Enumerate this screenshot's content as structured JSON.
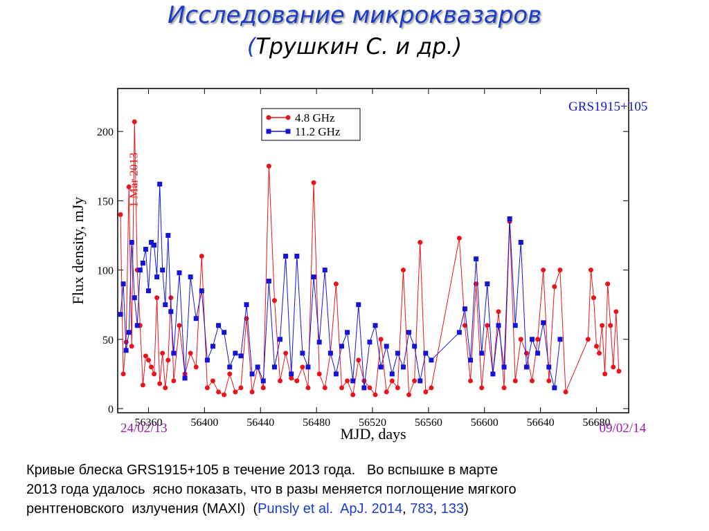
{
  "header": {
    "title": "Исследование микроквазаров",
    "subtitle": [
      {
        "text": "(",
        "color": "#1a3cc8"
      },
      {
        "text": "Трушкин С. и др.)",
        "color": "#000000"
      }
    ]
  },
  "chart_data": {
    "type": "line",
    "xlabel": "MJD, days",
    "ylabel": "Flux density, mJy",
    "annotations": [
      {
        "text": "GRS1915+105",
        "color": "#1414d8",
        "x": 56660,
        "y": 215
      },
      {
        "text": "1 Mar 2013",
        "color": "#e8141c",
        "x": 56352,
        "y": 165,
        "rotate": -90
      },
      {
        "text": "24/02/13",
        "color": "#9a1aa8",
        "x": 56340,
        "y": -17
      },
      {
        "text": "09/02/14",
        "color": "#9a1aa8",
        "x": 56682,
        "y": -17
      }
    ],
    "xlim": [
      56338,
      56703
    ],
    "ylim": [
      -3,
      231
    ],
    "xticks": [
      56360,
      56400,
      56440,
      56480,
      56520,
      56560,
      56600,
      56640,
      56680
    ],
    "yticks": [
      0,
      50,
      100,
      150,
      200
    ],
    "legend": "top-center",
    "series": [
      {
        "name": "4.8 GHz",
        "color": "#e8141c",
        "marker": "circle",
        "x": [
          56340,
          56342,
          56344,
          56346,
          56348,
          56350,
          56352,
          56354,
          56356,
          56358,
          56360,
          56362,
          56364,
          56366,
          56368,
          56370,
          56372,
          56374,
          56376,
          56378,
          56382,
          56386,
          56390,
          56394,
          56398,
          56402,
          56406,
          56410,
          56414,
          56418,
          56422,
          56426,
          56430,
          56434,
          56438,
          56442,
          56446,
          56450,
          56454,
          56458,
          56462,
          56466,
          56470,
          56474,
          56478,
          56482,
          56486,
          56490,
          56494,
          56498,
          56502,
          56506,
          56510,
          56514,
          56518,
          56522,
          56526,
          56530,
          56534,
          56538,
          56542,
          56546,
          56550,
          56554,
          56558,
          56562,
          56582,
          56586,
          56590,
          56594,
          56598,
          56602,
          56606,
          56610,
          56614,
          56618,
          56622,
          56626,
          56630,
          56634,
          56638,
          56642,
          56646,
          56650,
          56654,
          56658,
          56674,
          56676,
          56678,
          56680,
          56682,
          56684,
          56686,
          56688,
          56690,
          56692,
          56694,
          56696
        ],
        "values": [
          140,
          25,
          48,
          160,
          45,
          207,
          100,
          60,
          17,
          38,
          35,
          30,
          25,
          80,
          18,
          40,
          15,
          35,
          80,
          20,
          60,
          25,
          40,
          30,
          110,
          15,
          20,
          12,
          10,
          25,
          12,
          15,
          65,
          12,
          30,
          15,
          175,
          78,
          20,
          40,
          22,
          20,
          30,
          15,
          163,
          25,
          15,
          40,
          90,
          15,
          20,
          10,
          35,
          20,
          15,
          10,
          50,
          12,
          20,
          15,
          100,
          10,
          20,
          120,
          12,
          15,
          123,
          60,
          20,
          90,
          15,
          60,
          25,
          70,
          15,
          135,
          20,
          50,
          40,
          20,
          50,
          100,
          20,
          88,
          100,
          12,
          50,
          100,
          80,
          45,
          40,
          60,
          25,
          90,
          60,
          30,
          70,
          27
        ]
      },
      {
        "name": "11.2 GHz",
        "color": "#1414d8",
        "marker": "square",
        "x": [
          56340,
          56342,
          56344,
          56346,
          56348,
          56350,
          56352,
          56354,
          56356,
          56358,
          56360,
          56362,
          56364,
          56366,
          56368,
          56370,
          56372,
          56374,
          56376,
          56378,
          56382,
          56386,
          56390,
          56394,
          56398,
          56402,
          56406,
          56410,
          56414,
          56418,
          56422,
          56426,
          56430,
          56434,
          56438,
          56442,
          56446,
          56450,
          56454,
          56458,
          56462,
          56466,
          56470,
          56474,
          56478,
          56482,
          56486,
          56490,
          56494,
          56498,
          56502,
          56506,
          56510,
          56514,
          56518,
          56522,
          56526,
          56530,
          56534,
          56538,
          56542,
          56546,
          56550,
          56554,
          56558,
          56562,
          56582,
          56586,
          56590,
          56594,
          56598,
          56602,
          56606,
          56610,
          56614,
          56618,
          56622,
          56626,
          56630,
          56634,
          56638,
          56642,
          56646,
          56650,
          56654
        ],
        "values": [
          68,
          90,
          42,
          55,
          120,
          80,
          60,
          100,
          105,
          115,
          85,
          120,
          118,
          95,
          162,
          100,
          75,
          125,
          70,
          40,
          98,
          22,
          95,
          65,
          85,
          35,
          45,
          60,
          55,
          30,
          40,
          38,
          75,
          25,
          30,
          20,
          92,
          30,
          50,
          110,
          25,
          110,
          40,
          30,
          95,
          48,
          100,
          40,
          25,
          45,
          55,
          20,
          75,
          15,
          48,
          60,
          30,
          45,
          25,
          40,
          30,
          55,
          45,
          20,
          40,
          35,
          55,
          72,
          35,
          108,
          40,
          90,
          25,
          60,
          30,
          137,
          60,
          120,
          30,
          50,
          40,
          62,
          30,
          15,
          50
        ]
      }
    ]
  },
  "caption": {
    "lines": [
      [
        {
          "text": "Кривые блеска GRS1915+105 в течение 2013 года.   Во вспышке в марте",
          "color": "#000000"
        }
      ],
      [
        {
          "text": "2013 года удалось  ясно показать, что в разы меняется поглощение мягкого",
          "color": "#000000"
        }
      ],
      [
        {
          "text": "рентгеновского  излучения (MAXI)  (",
          "color": "#000000"
        },
        {
          "text": "Punsly et al.  ApJ. 2014",
          "color": "#1a3cc8"
        },
        {
          "text": ", ",
          "color": "#000000"
        },
        {
          "text": "783",
          "color": "#1a3cc8"
        },
        {
          "text": ", ",
          "color": "#000000"
        },
        {
          "text": "133",
          "color": "#1a3cc8"
        },
        {
          "text": ")",
          "color": "#000000"
        }
      ]
    ]
  }
}
